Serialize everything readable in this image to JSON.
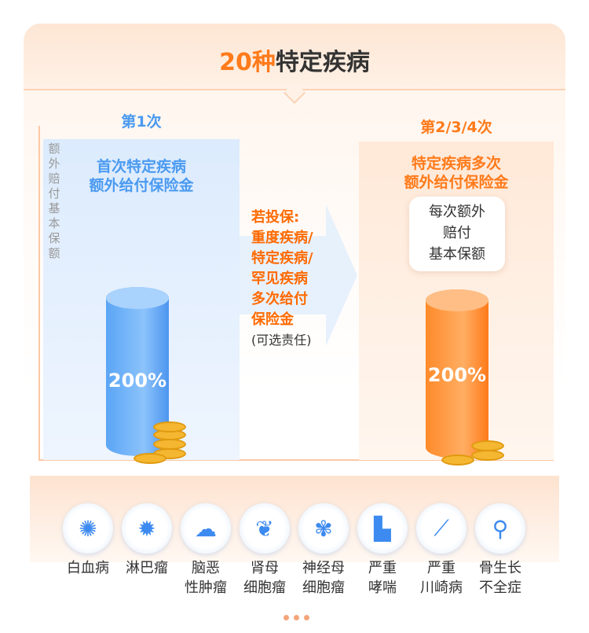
{
  "title": {
    "highlight": "20种",
    "rest": "特定疾病"
  },
  "axis_label": "额外赔付基本保额",
  "first": {
    "tag": "第1次",
    "line1": "首次特定疾病",
    "line2": "额外给付保险金",
    "percent": "200%"
  },
  "repeat": {
    "tag": "第2/3/4次",
    "line1": "特定疾病多次",
    "line2": "额外给付保险金",
    "bubble": [
      "每次额外",
      "赔付",
      "基本保额"
    ],
    "percent": "200%"
  },
  "middle": {
    "lines": [
      "若投保:",
      "重度疾病/",
      "特定疾病/",
      "罕见疾病",
      "多次给付",
      "保险金"
    ],
    "optional": "(可选责任)"
  },
  "diseases": [
    {
      "icon": "virus-icon",
      "l1": "白血病",
      "l2": ""
    },
    {
      "icon": "cell-icon",
      "l1": "淋巴瘤",
      "l2": ""
    },
    {
      "icon": "brain-icon",
      "l1": "脑恶",
      "l2": "性肿瘤"
    },
    {
      "icon": "kidney-icon",
      "l1": "肾母",
      "l2": "细胞瘤"
    },
    {
      "icon": "neuron-icon",
      "l1": "神经母",
      "l2": "细胞瘤"
    },
    {
      "icon": "inhaler-icon",
      "l1": "严重",
      "l2": "哮喘"
    },
    {
      "icon": "thermometer-icon",
      "l1": "严重",
      "l2": "川崎病"
    },
    {
      "icon": "bone-joint-icon",
      "l1": "骨生长",
      "l2": "不全症"
    }
  ],
  "colors": {
    "accent": "#ff7a1a",
    "blue": "#4a9af0"
  }
}
